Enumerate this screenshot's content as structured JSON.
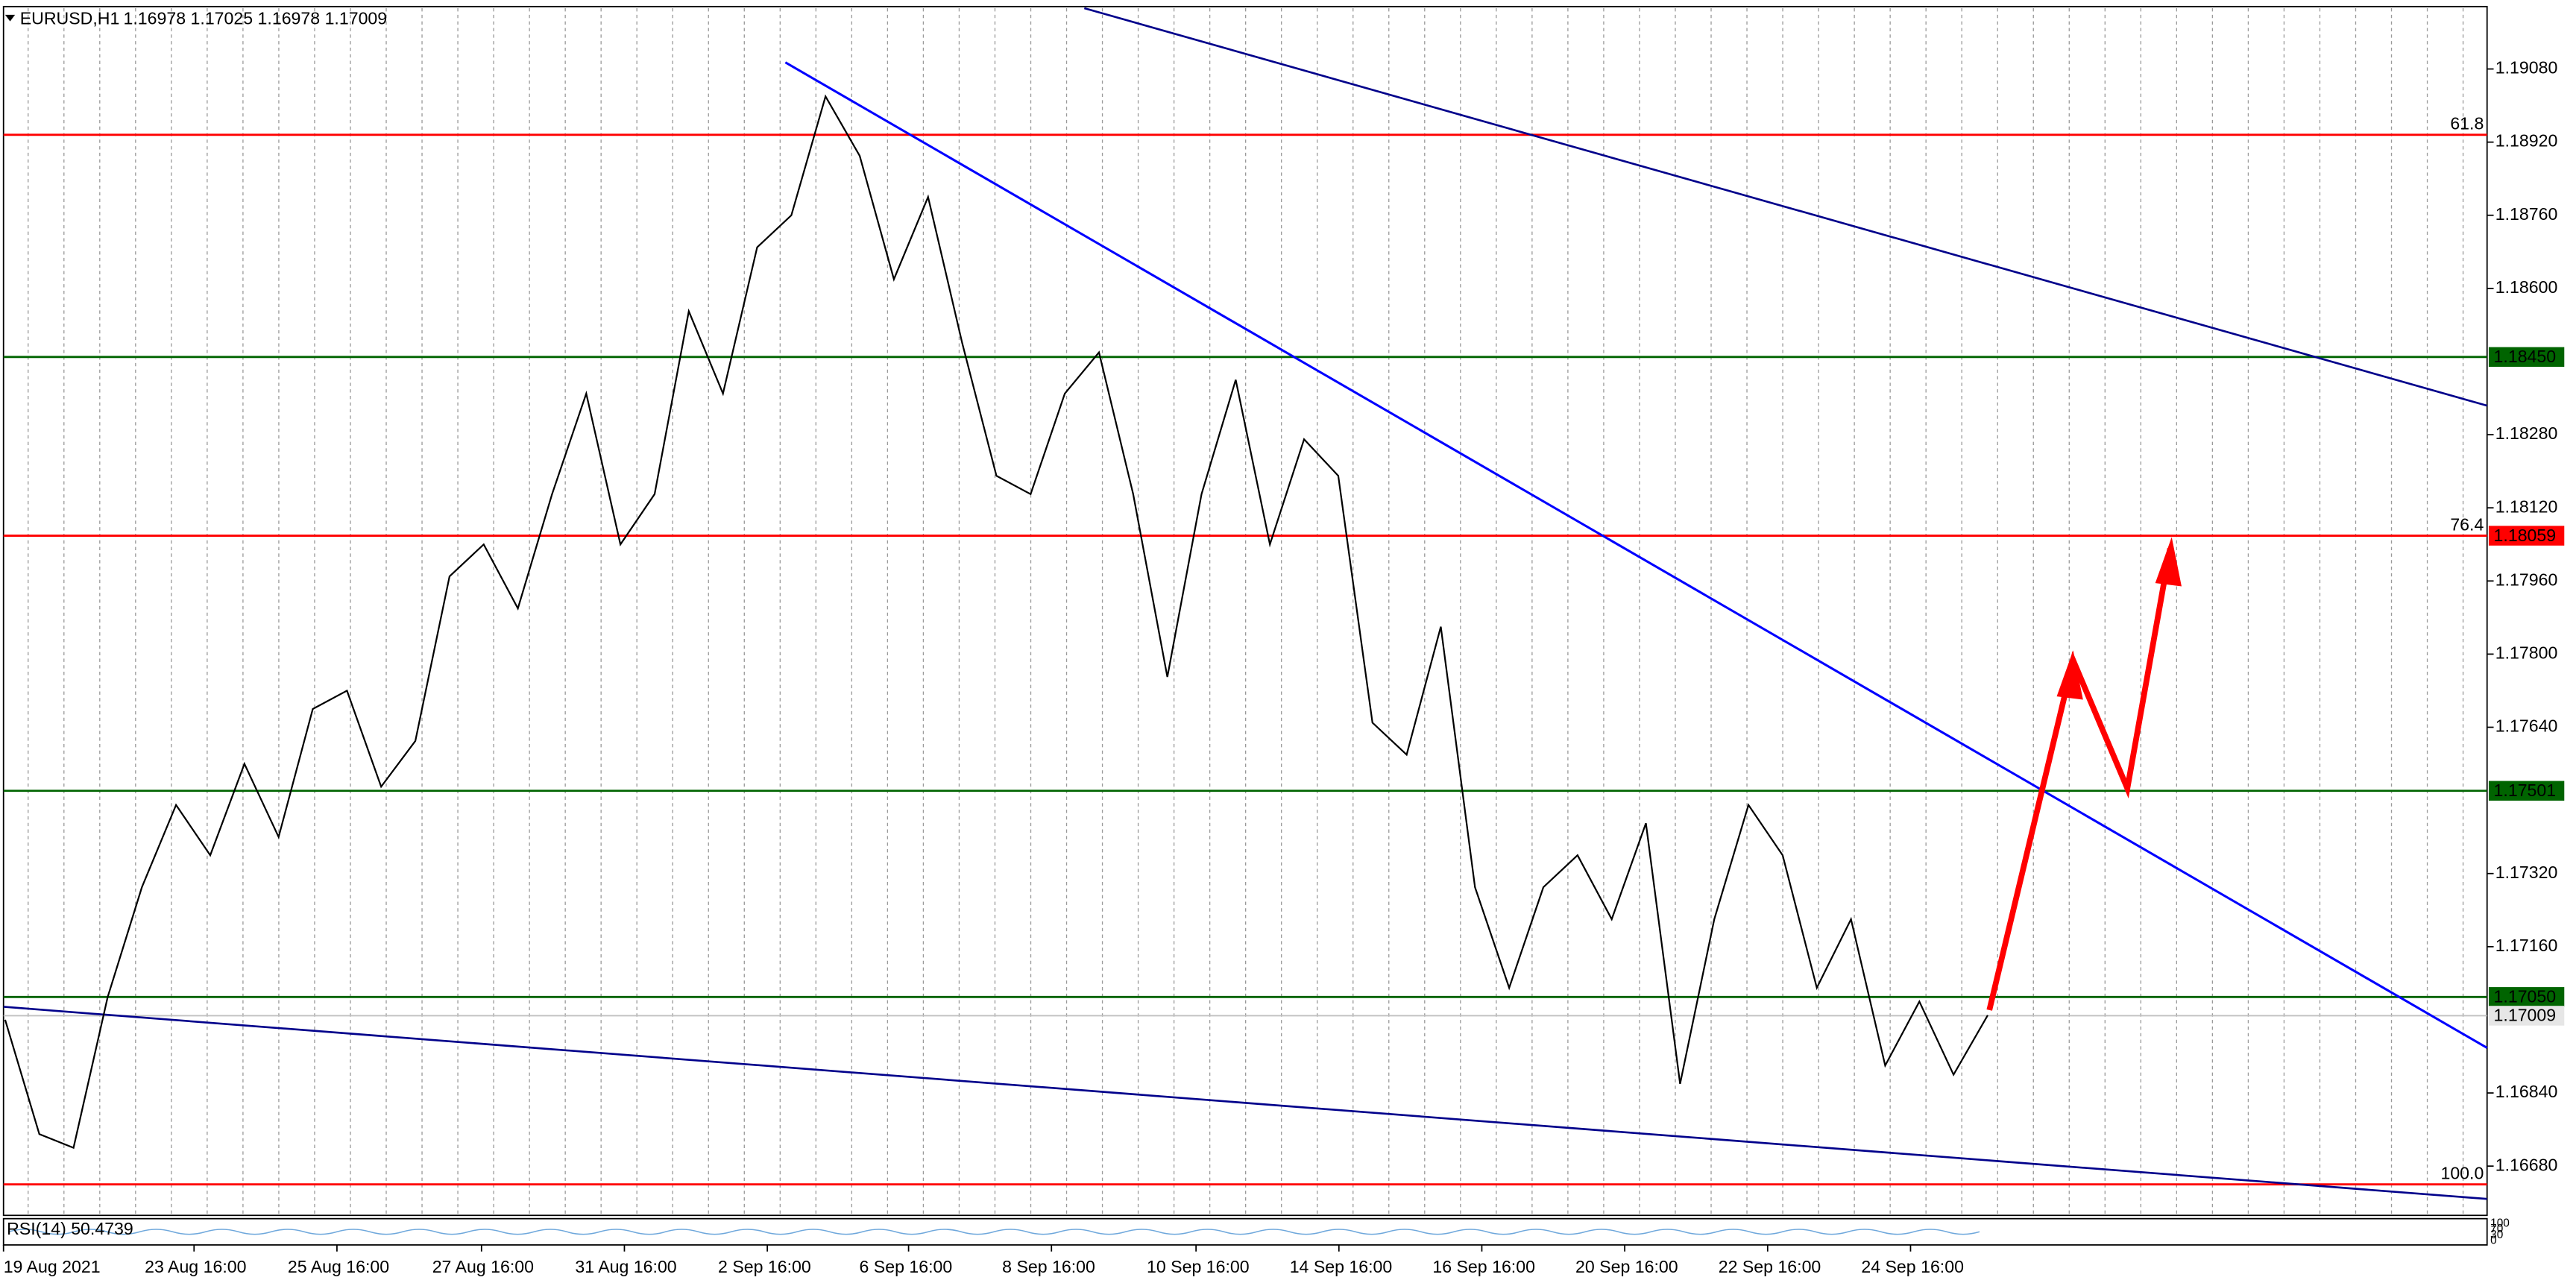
{
  "header": {
    "symbol": "EURUSD,H1",
    "ohlc": "1.16978 1.17025 1.16978 1.17009"
  },
  "price_axis": {
    "ticks": [
      {
        "value": 1.1908,
        "label": "1.19080"
      },
      {
        "value": 1.1892,
        "label": "1.18920"
      },
      {
        "value": 1.1876,
        "label": "1.18760"
      },
      {
        "value": 1.186,
        "label": "1.18600"
      },
      {
        "value": 1.1828,
        "label": "1.18280"
      },
      {
        "value": 1.1812,
        "label": "1.18120"
      },
      {
        "value": 1.1796,
        "label": "1.17960"
      },
      {
        "value": 1.178,
        "label": "1.17800"
      },
      {
        "value": 1.1764,
        "label": "1.17640"
      },
      {
        "value": 1.1732,
        "label": "1.17320"
      },
      {
        "value": 1.1716,
        "label": "1.17160"
      },
      {
        "value": 1.1684,
        "label": "1.16840"
      },
      {
        "value": 1.1668,
        "label": "1.16680"
      }
    ]
  },
  "levels": [
    {
      "value": 1.18936,
      "color": "#ff0000",
      "fib": "61.8"
    },
    {
      "value": 1.1845,
      "color": "#006400",
      "tag": "1.18450"
    },
    {
      "value": 1.18059,
      "color": "#ff0000",
      "fib": "76.4",
      "tag": "1.18059"
    },
    {
      "value": 1.17501,
      "color": "#006400",
      "tag": "1.17501"
    },
    {
      "value": 1.1705,
      "color": "#006400",
      "tag": "1.17050"
    },
    {
      "value": 1.1664,
      "color": "#ff0000",
      "fib": "100.0"
    }
  ],
  "current_price": {
    "value": 1.17009,
    "tag": "1.17009"
  },
  "price_series": [
    1.17,
    1.1675,
    1.1672,
    1.1705,
    1.1729,
    1.1747,
    1.1736,
    1.1756,
    1.174,
    1.1768,
    1.1772,
    1.1751,
    1.1761,
    1.1797,
    1.1804,
    1.179,
    1.1815,
    1.1837,
    1.1804,
    1.1815,
    1.1855,
    1.1837,
    1.1869,
    1.1876,
    1.1902,
    1.1889,
    1.1862,
    1.188,
    1.1848,
    1.1819,
    1.1815,
    1.1837,
    1.1846,
    1.1815,
    1.1775,
    1.1815,
    1.184,
    1.1804,
    1.1827,
    1.1819,
    1.1765,
    1.1758,
    1.1786,
    1.1729,
    1.1707,
    1.1729,
    1.1736,
    1.1722,
    1.1743,
    1.1686,
    1.1722,
    1.1747,
    1.1736,
    1.1707,
    1.1722,
    1.169,
    1.1704,
    1.1688,
    1.1701
  ],
  "indicator": {
    "label": "RSI(14) 50.4739",
    "scale": [
      "100",
      "70",
      "30",
      "0"
    ]
  },
  "time_axis": [
    "19 Aug 2021",
    "23 Aug 16:00",
    "25 Aug 16:00",
    "27 Aug 16:00",
    "31 Aug 16:00",
    "2 Sep 16:00",
    "6 Sep 16:00",
    "8 Sep 16:00",
    "10 Sep 16:00",
    "14 Sep 16:00",
    "16 Sep 16:00",
    "20 Sep 16:00",
    "22 Sep 16:00",
    "24 Sep 16:00"
  ]
}
